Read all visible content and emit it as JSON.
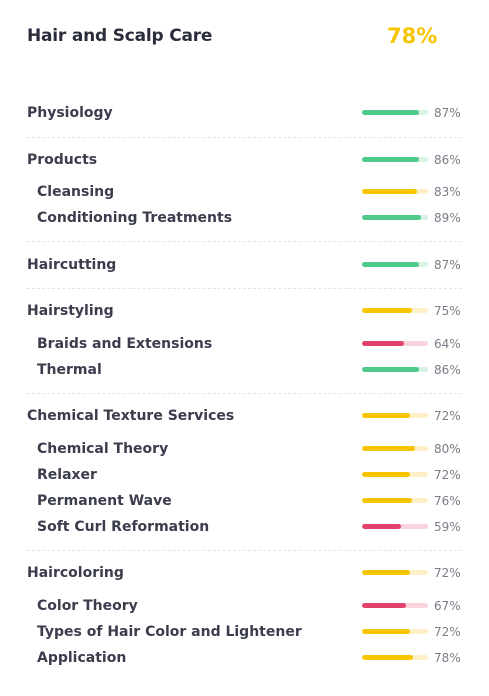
{
  "header": {
    "title": "Hair and Scalp Care",
    "score": "78%"
  },
  "colors": {
    "green": "#4dc98a",
    "yellow": "#f7c600",
    "red": "#e0426a",
    "score": "#f6c400"
  },
  "rows": [
    {
      "label": "Physiology",
      "value": 87,
      "pct": "87%",
      "level": "main",
      "color": "green"
    },
    {
      "label": "Products",
      "value": 86,
      "pct": "86%",
      "level": "main",
      "color": "green"
    },
    {
      "label": "Cleansing",
      "value": 83,
      "pct": "83%",
      "level": "sub",
      "color": "yellow"
    },
    {
      "label": "Conditioning Treatments",
      "value": 89,
      "pct": "89%",
      "level": "sub",
      "color": "green"
    },
    {
      "label": "Haircutting",
      "value": 87,
      "pct": "87%",
      "level": "main",
      "color": "green"
    },
    {
      "label": "Hairstyling",
      "value": 75,
      "pct": "75%",
      "level": "main",
      "color": "yellow"
    },
    {
      "label": "Braids and Extensions",
      "value": 64,
      "pct": "64%",
      "level": "sub",
      "color": "red"
    },
    {
      "label": "Thermal",
      "value": 86,
      "pct": "86%",
      "level": "sub",
      "color": "green"
    },
    {
      "label": "Chemical Texture Services",
      "value": 72,
      "pct": "72%",
      "level": "main",
      "color": "yellow"
    },
    {
      "label": "Chemical Theory",
      "value": 80,
      "pct": "80%",
      "level": "sub",
      "color": "yellow"
    },
    {
      "label": "Relaxer",
      "value": 72,
      "pct": "72%",
      "level": "sub",
      "color": "yellow"
    },
    {
      "label": "Permanent Wave",
      "value": 76,
      "pct": "76%",
      "level": "sub",
      "color": "yellow"
    },
    {
      "label": "Soft Curl Reformation",
      "value": 59,
      "pct": "59%",
      "level": "sub",
      "color": "red"
    },
    {
      "label": "Haircoloring",
      "value": 72,
      "pct": "72%",
      "level": "main",
      "color": "yellow"
    },
    {
      "label": "Color Theory",
      "value": 67,
      "pct": "67%",
      "level": "sub",
      "color": "red"
    },
    {
      "label": "Types of Hair Color and Lightener",
      "value": 72,
      "pct": "72%",
      "level": "sub",
      "color": "yellow"
    },
    {
      "label": "Application",
      "value": 78,
      "pct": "78%",
      "level": "sub",
      "color": "yellow"
    }
  ]
}
